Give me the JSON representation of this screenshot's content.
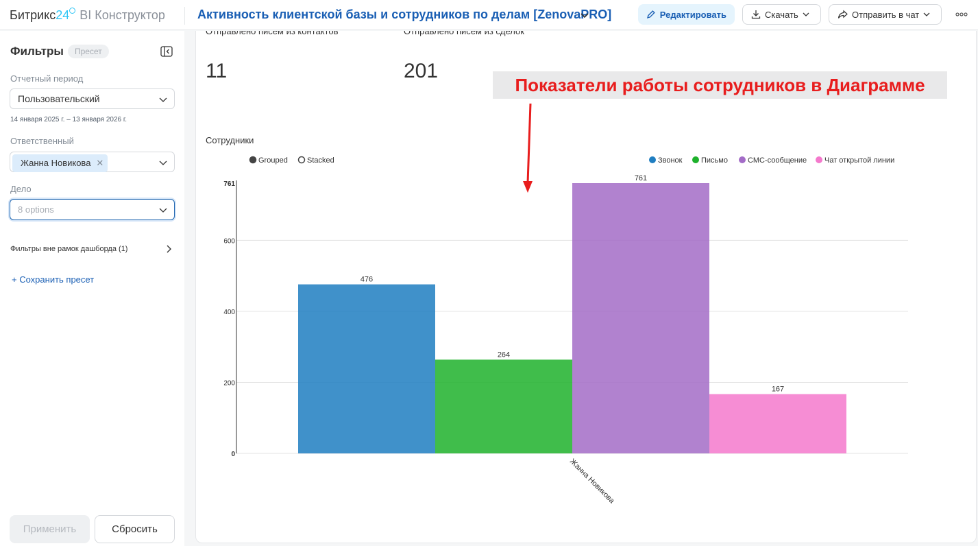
{
  "app": {
    "brand_name": "Битрикс",
    "brand_num": "24",
    "product": "BI Конструктор"
  },
  "dashboard": {
    "title": "Активность клиентской базы и сотрудников по делам [ZenovaPRO]"
  },
  "toolbar": {
    "edit_label": "Редактировать",
    "download_label": "Скачать",
    "send_label": "Отправить в чат"
  },
  "filters": {
    "title": "Фильтры",
    "preset_badge": "Пресет",
    "period_label": "Отчетный период",
    "period_value": "Пользовательский",
    "period_range": "14 января 2025 г. – 13 января 2026 г.",
    "responsible_label": "Ответственный",
    "responsible_tag": "Жанна Новикова",
    "deal_label": "Дело",
    "deal_placeholder": "8 options",
    "outside_label": "Фильтры вне рамок дашборда (1)",
    "save_preset": "+ Сохранить пресет",
    "apply_label": "Применить",
    "reset_label": "Сбросить"
  },
  "kpis": [
    {
      "label": "Отправлено писем из контактов",
      "value": "11"
    },
    {
      "label": "Отправлено писем из сделок",
      "value": "201"
    }
  ],
  "annotation": {
    "text": "Показатели работы сотрудников в Диаграмме",
    "color": "#e81d1d"
  },
  "chart_title": "Сотрудники",
  "chart_data": {
    "type": "bar",
    "mode_options": [
      "Grouped",
      "Stacked"
    ],
    "mode_selected": "Grouped",
    "categories": [
      "Жанна Новикова"
    ],
    "series": [
      {
        "name": "Звонок",
        "values": [
          476
        ],
        "color": "#1f7ec1"
      },
      {
        "name": "Письмо",
        "values": [
          264
        ],
        "color": "#1eb12c"
      },
      {
        "name": "СМС-сообщение",
        "values": [
          761
        ],
        "color": "#a36cc7"
      },
      {
        "name": "Чат открытой линии",
        "values": [
          167
        ],
        "color": "#f479cc"
      }
    ],
    "y_ticks": [
      "0",
      "200",
      "400",
      "600",
      "761"
    ],
    "ylim": [
      0,
      761
    ],
    "grid": true,
    "legend_position": "top-right"
  }
}
